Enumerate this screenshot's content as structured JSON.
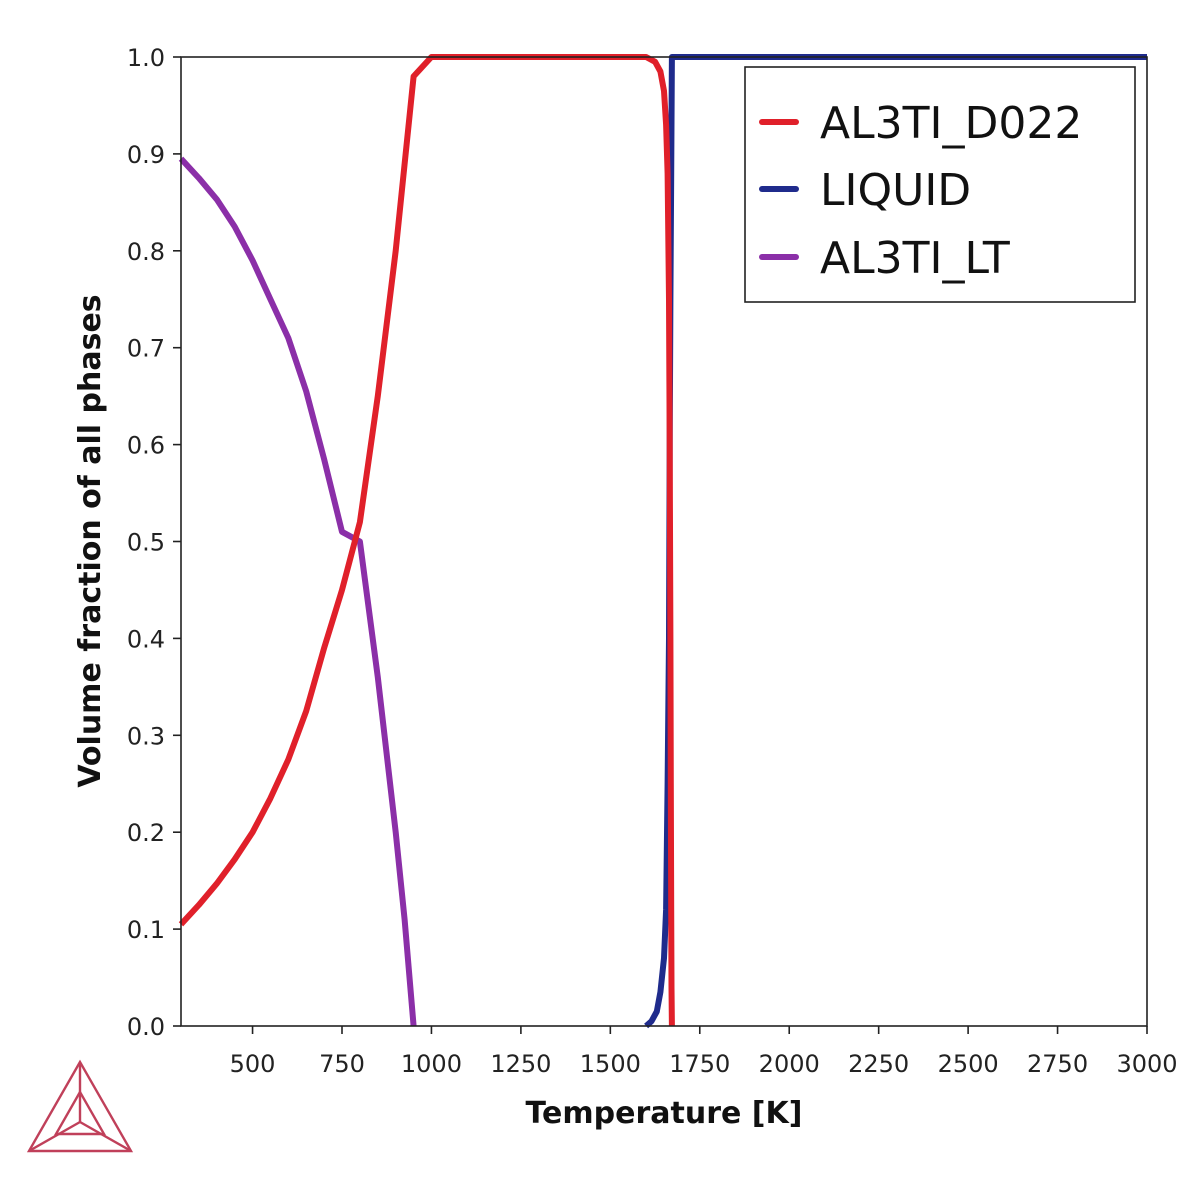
{
  "chart_data": {
    "type": "line",
    "title": "",
    "xlabel": "Temperature [K]",
    "ylabel": "Volume fraction of all phases",
    "xlim": [
      300,
      3000
    ],
    "ylim": [
      0.0,
      1.0
    ],
    "xticks": [
      500,
      750,
      1000,
      1250,
      1500,
      1750,
      2000,
      2250,
      2500,
      2750,
      3000
    ],
    "xtick_labels": [
      "500",
      "750",
      "1000",
      "1250",
      "1500",
      "1750",
      "2000",
      "2250",
      "2500",
      "2750",
      "3000"
    ],
    "yticks": [
      0.0,
      0.1,
      0.2,
      0.3,
      0.4,
      0.5,
      0.6,
      0.7,
      0.8,
      0.9,
      1.0
    ],
    "ytick_labels": [
      "0.0",
      "0.1",
      "0.2",
      "0.3",
      "0.4",
      "0.5",
      "0.6",
      "0.7",
      "0.8",
      "0.9",
      "1.0"
    ],
    "grid": false,
    "legend_position": "top-right",
    "series": [
      {
        "name": "AL3TI_D022",
        "color": "#e0202a",
        "x": [
          300,
          350,
          400,
          450,
          500,
          550,
          600,
          650,
          700,
          750,
          800,
          850,
          900,
          950,
          1000,
          1300,
          1550,
          1600,
          1625,
          1640,
          1650,
          1656,
          1660,
          1664,
          1666,
          1668,
          1669,
          1670,
          1671,
          1672
        ],
        "y": [
          0.105,
          0.125,
          0.147,
          0.172,
          0.2,
          0.235,
          0.275,
          0.325,
          0.39,
          0.45,
          0.52,
          0.65,
          0.8,
          0.98,
          1.0,
          1.0,
          1.0,
          1.0,
          0.995,
          0.985,
          0.965,
          0.93,
          0.88,
          0.75,
          0.6,
          0.4,
          0.25,
          0.12,
          0.04,
          0.0
        ]
      },
      {
        "name": "LIQUID",
        "color": "#1f2b8c",
        "x": [
          1600,
          1615,
          1630,
          1640,
          1650,
          1656,
          1660,
          1664,
          1666,
          1668,
          1670,
          1672,
          1680,
          2000,
          3000
        ],
        "y": [
          0.0,
          0.005,
          0.015,
          0.035,
          0.07,
          0.12,
          0.25,
          0.4,
          0.6,
          0.75,
          0.88,
          1.0,
          1.0,
          1.0,
          1.0
        ]
      },
      {
        "name": "AL3TI_LT",
        "color": "#8b2fa8",
        "x": [
          300,
          350,
          400,
          450,
          500,
          550,
          600,
          650,
          700,
          750,
          800,
          850,
          900,
          925,
          950
        ],
        "y": [
          0.895,
          0.875,
          0.853,
          0.825,
          0.79,
          0.75,
          0.71,
          0.655,
          0.585,
          0.51,
          0.5,
          0.36,
          0.2,
          0.11,
          0.0
        ]
      }
    ]
  },
  "logo": {
    "name": "thermo-calc-triangle-logo",
    "color": "#c0405a"
  }
}
